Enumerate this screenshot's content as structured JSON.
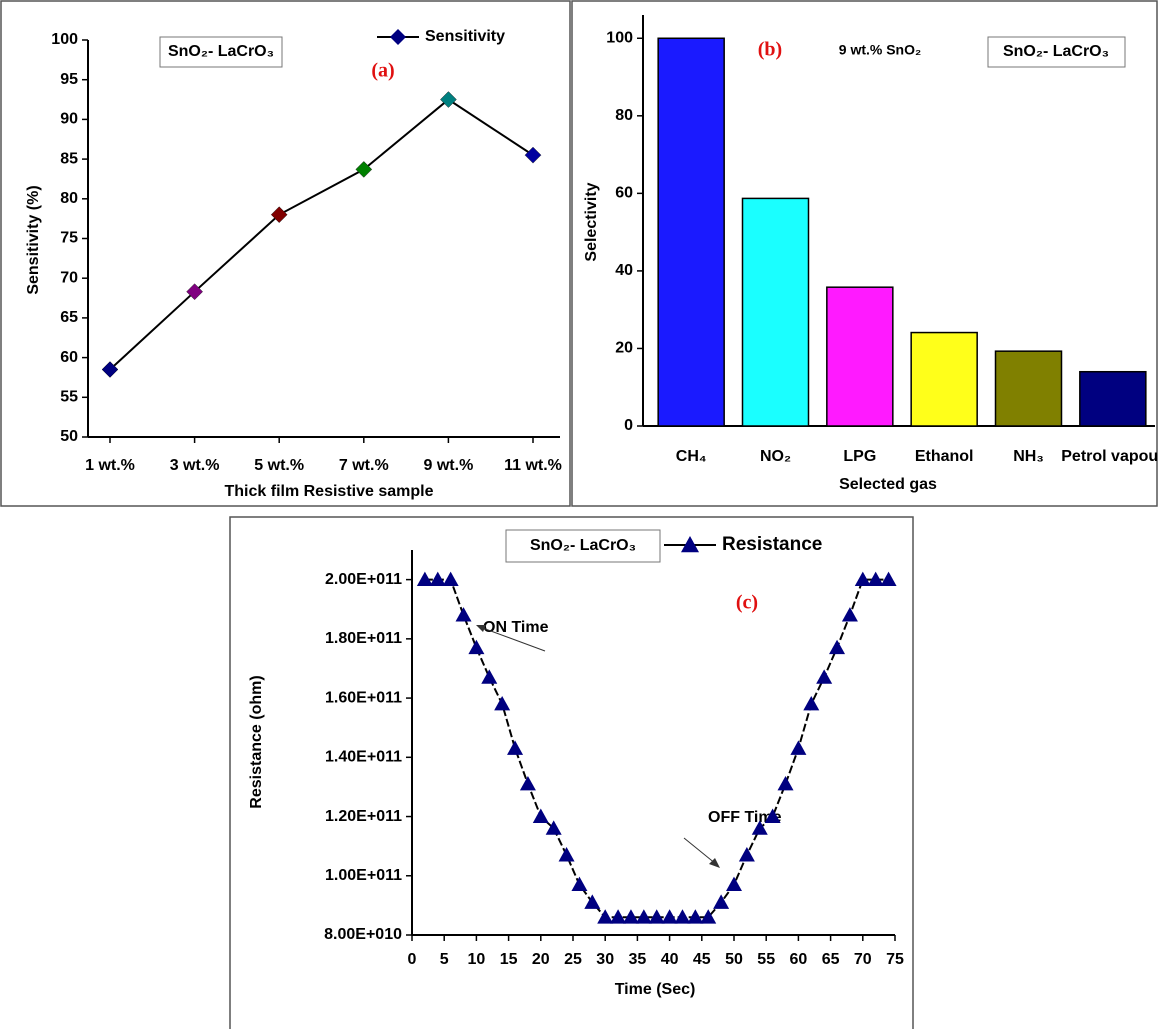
{
  "chart_data": [
    {
      "type": "line",
      "panel_label": "(a)",
      "box_label": "SnO₂- LaCrO₃",
      "xlabel": "Thick film Resistive sample",
      "ylabel": "Sensitivity (%)",
      "categories": [
        "1 wt.%",
        "3 wt.%",
        "5 wt.%",
        "7 wt.%",
        "9 wt.%",
        "11 wt.%"
      ],
      "series": [
        {
          "name": "Sensitivity",
          "color": "#000080",
          "line_color": "#000000",
          "values": [
            58.5,
            68.3,
            78,
            83.7,
            92.5,
            85.5
          ],
          "point_colors": [
            "#000080",
            "#800080",
            "#800000",
            "#008000",
            "#008080",
            "#0000a0"
          ]
        }
      ],
      "ylim": [
        50,
        100
      ],
      "yticks": [
        50,
        55,
        60,
        65,
        70,
        75,
        80,
        85,
        90,
        95,
        100
      ]
    },
    {
      "type": "bar",
      "panel_label": "(b)",
      "box_label": "SnO₂- LaCrO₃",
      "subtitle": "9 wt.% SnO₂",
      "xlabel": "Selected gas",
      "ylabel": "Selectivity",
      "categories": [
        "CH₄",
        "NO₂",
        "LPG",
        "Ethanol",
        "NH₃",
        "Petrol vapour"
      ],
      "values": [
        100,
        58.7,
        35.8,
        24.1,
        19.3,
        14
      ],
      "colors": [
        "#1a1aff",
        "#1affff",
        "#ff1aff",
        "#ffff1a",
        "#808000",
        "#000080"
      ],
      "ylim": [
        0,
        106
      ],
      "yticks": [
        0,
        20,
        40,
        60,
        80,
        100
      ]
    },
    {
      "type": "scatter-line",
      "panel_label": "(c)",
      "box_label": "SnO₂- LaCrO₃",
      "xlabel": "Time (Sec)",
      "ylabel": "Resistance (ohm)",
      "annotations": [
        "ON Time",
        "OFF Time"
      ],
      "x": [
        2,
        4,
        6,
        8,
        10,
        12,
        14,
        16,
        18,
        20,
        22,
        24,
        26,
        28,
        30,
        32,
        34,
        36,
        38,
        40,
        42,
        44,
        46,
        48,
        50,
        52,
        54,
        56,
        58,
        60,
        62,
        64,
        66,
        68,
        70,
        72,
        74
      ],
      "series": [
        {
          "name": "Resistance",
          "color": "#000080",
          "line_color": "#000000",
          "values": [
            200000000000,
            200000000000,
            200000000000,
            188000000000,
            177000000000,
            167000000000,
            158000000000,
            143000000000,
            131000000000,
            120000000000,
            116000000000,
            107000000000,
            97000000000,
            91000000000,
            86000000000,
            86000000000,
            86000000000,
            86000000000,
            86000000000,
            86000000000,
            86000000000,
            86000000000,
            86000000000,
            91000000000,
            97000000000,
            107000000000,
            116000000000,
            120000000000,
            131000000000,
            143000000000,
            158000000000,
            167000000000,
            177000000000,
            188000000000,
            200000000000,
            200000000000,
            200000000000
          ]
        }
      ],
      "xlim": [
        0,
        75
      ],
      "xticks": [
        0,
        5,
        10,
        15,
        20,
        25,
        30,
        35,
        40,
        45,
        50,
        55,
        60,
        65,
        70,
        75
      ],
      "ylim": [
        80000000000,
        210000000000
      ],
      "yticks": [
        {
          "value": 80000000000,
          "label": "8.00E+010"
        },
        {
          "value": 100000000000,
          "label": "1.00E+011"
        },
        {
          "value": 120000000000,
          "label": "1.20E+011"
        },
        {
          "value": 140000000000,
          "label": "1.40E+011"
        },
        {
          "value": 160000000000,
          "label": "1.60E+011"
        },
        {
          "value": 180000000000,
          "label": "1.80E+011"
        },
        {
          "value": 200000000000,
          "label": "2.00E+011"
        }
      ]
    }
  ]
}
